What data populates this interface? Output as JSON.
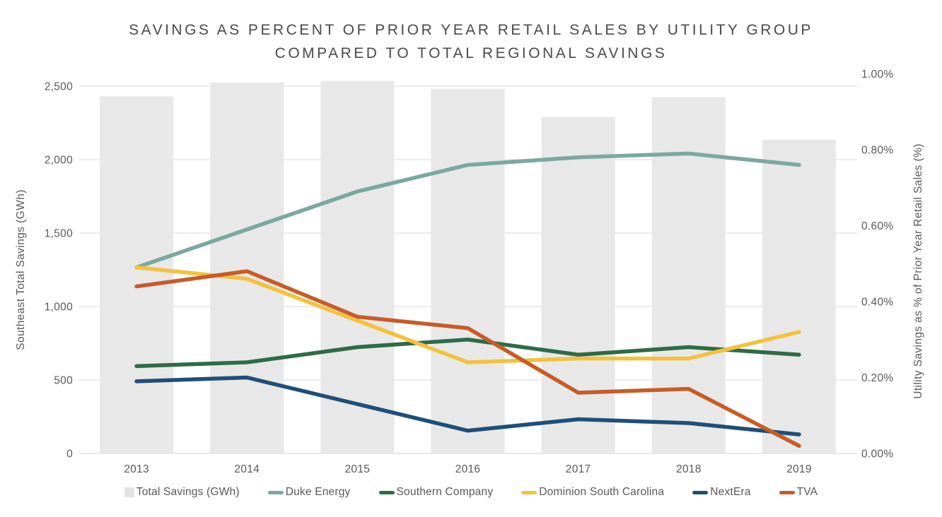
{
  "title": {
    "line1": "SAVINGS AS PERCENT OF PRIOR YEAR RETAIL SALES BY UTILITY GROUP",
    "line2": "COMPARED TO TOTAL REGIONAL SAVINGS"
  },
  "left_axis": {
    "label": "Southeast Total Savings (GWh)",
    "tick_labels": [
      "0",
      "500",
      "1,000",
      "1,500",
      "2,000",
      "2,500"
    ],
    "tick_values": [
      0,
      500,
      1000,
      1500,
      2000,
      2500
    ],
    "max": 2500
  },
  "right_axis": {
    "label": "Utility Savings as % of Prior Year Retail Sales (%)",
    "tick_labels": [
      "0.00%",
      "0.20%",
      "0.40%",
      "0.60%",
      "0.80%",
      "1.00%"
    ],
    "tick_values": [
      0,
      0.2,
      0.4,
      0.6,
      0.8,
      1.0
    ],
    "max": 1.0
  },
  "colors": {
    "bar": "#e8e8e8",
    "legend_square": "#e3e3e3",
    "gridline": "#e0e0e0",
    "axis_line": "#d9d9d9",
    "tick_text": "#595959",
    "title_text": "#4a4a4a"
  },
  "chart_data": {
    "type": "bar+line",
    "categories": [
      "2013",
      "2014",
      "2015",
      "2016",
      "2017",
      "2018",
      "2019"
    ],
    "bar_series": {
      "name": "Total Savings (GWh)",
      "axis": "left",
      "color": "#e8e8e8",
      "values": [
        2430,
        2525,
        2535,
        2480,
        2290,
        2425,
        2135
      ]
    },
    "line_series": [
      {
        "name": "Duke Energy",
        "axis": "right",
        "color": "#7da7a1",
        "values": [
          0.49,
          0.59,
          0.69,
          0.76,
          0.78,
          0.79,
          0.76
        ]
      },
      {
        "name": "Southern Company",
        "axis": "right",
        "color": "#2e6b48",
        "values": [
          0.23,
          0.24,
          0.28,
          0.3,
          0.26,
          0.28,
          0.26
        ]
      },
      {
        "name": "Dominion South Carolina",
        "axis": "right",
        "color": "#f2c23e",
        "values": [
          0.49,
          0.46,
          0.35,
          0.24,
          0.25,
          0.25,
          0.32
        ]
      },
      {
        "name": "NextEra",
        "axis": "right",
        "color": "#1f4e79",
        "values": [
          0.19,
          0.2,
          0.13,
          0.06,
          0.09,
          0.08,
          0.05
        ]
      },
      {
        "name": "TVA",
        "axis": "right",
        "color": "#c85b28",
        "values": [
          0.44,
          0.48,
          0.36,
          0.33,
          0.16,
          0.17,
          0.02
        ]
      }
    ],
    "title": "Savings as percent of prior year retail sales by utility group compared to total regional savings",
    "xlabel": "",
    "ylabel_left": "Southeast Total Savings (GWh)",
    "ylabel_right": "Utility Savings as % of Prior Year Retail Sales (%)",
    "ylim_left": [
      0,
      2500
    ],
    "ylim_right": [
      0.0,
      1.0
    ],
    "grid": "horizontal",
    "legend_position": "bottom"
  },
  "legend": {
    "items": [
      {
        "label": "Total Savings (GWh)",
        "swatch": "square",
        "color": "#e3e3e3"
      },
      {
        "label": "Duke Energy",
        "swatch": "line",
        "color": "#7da7a1"
      },
      {
        "label": "Southern Company",
        "swatch": "line",
        "color": "#2e6b48"
      },
      {
        "label": "Dominion South Carolina",
        "swatch": "line",
        "color": "#f2c23e"
      },
      {
        "label": "NextEra",
        "swatch": "line",
        "color": "#1f4e79"
      },
      {
        "label": "TVA",
        "swatch": "line",
        "color": "#c85b28"
      }
    ]
  }
}
